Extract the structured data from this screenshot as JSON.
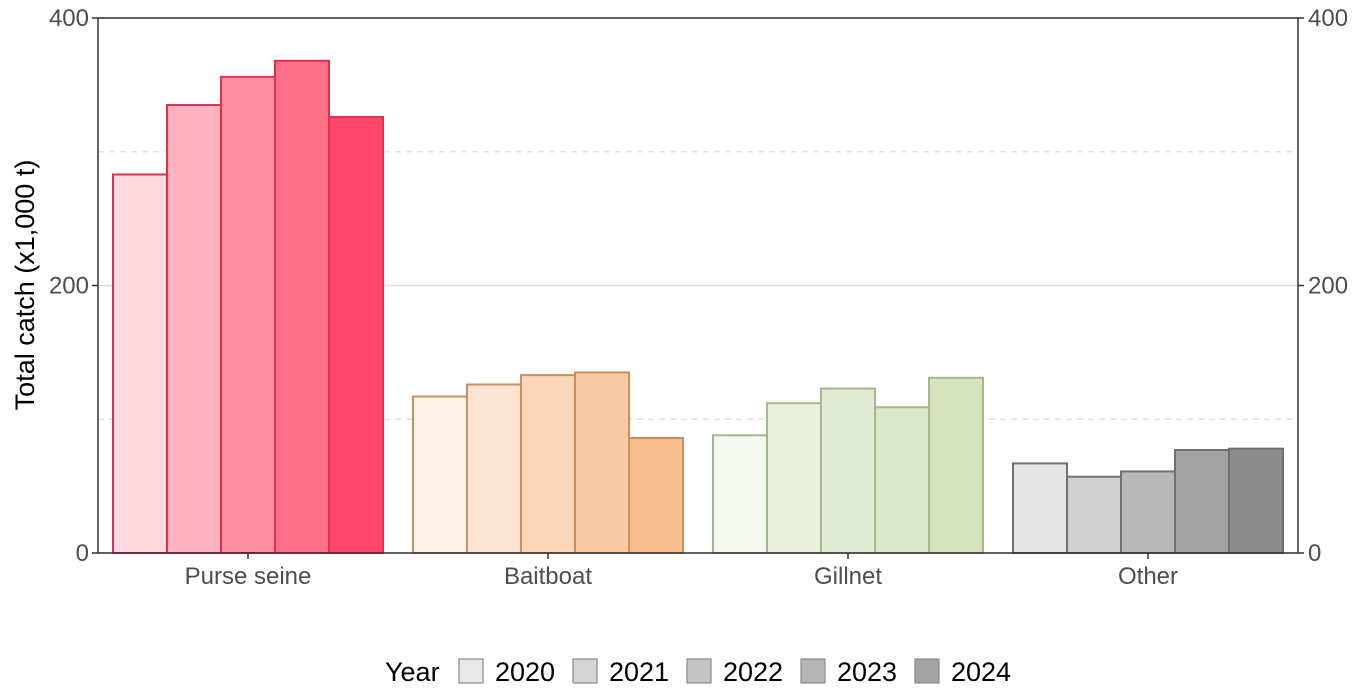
{
  "chart_data": {
    "type": "bar",
    "title": "",
    "xlabel": "",
    "ylabel": "Total catch (x1,000 t)",
    "ylim": [
      0,
      400
    ],
    "yticks": [
      0,
      200,
      400
    ],
    "secondary_axis": true,
    "grid": true,
    "legend_title": "Year",
    "legend_position": "bottom",
    "categories": [
      "Purse seine",
      "Baitboat",
      "Gillnet",
      "Other"
    ],
    "series": [
      {
        "name": "2020",
        "values": [
          283,
          117,
          88,
          67
        ],
        "legend_color": "#e8e8e8"
      },
      {
        "name": "2021",
        "values": [
          335,
          126,
          112,
          57
        ],
        "legend_color": "#d5d5d5"
      },
      {
        "name": "2022",
        "values": [
          356,
          133,
          123,
          61
        ],
        "legend_color": "#c4c4c4"
      },
      {
        "name": "2023",
        "values": [
          368,
          135,
          109,
          77
        ],
        "legend_color": "#b4b4b4"
      },
      {
        "name": "2024",
        "values": [
          326,
          86,
          131,
          78
        ],
        "legend_color": "#a3a3a3"
      }
    ],
    "category_colors": [
      {
        "fills": [
          "#ffd9e0",
          "#ffb3c1",
          "#ff8da1",
          "#ff6f88",
          "#ff4569"
        ],
        "stroke": "#e0304f"
      },
      {
        "fills": [
          "#fff2e8",
          "#fde4d2",
          "#fbd6bb",
          "#f9c9a5",
          "#f7bd8f"
        ],
        "stroke": "#c8905c"
      },
      {
        "fills": [
          "#f5f8ef",
          "#e8f0db",
          "#e2ecd4",
          "#dce6ca",
          "#d6e4bd"
        ],
        "stroke": "#a3b88c"
      },
      {
        "fills": [
          "#e6e6e6",
          "#d1d1d1",
          "#b8b8b8",
          "#a3a3a3",
          "#8c8c8c"
        ],
        "stroke": "#707070"
      }
    ]
  }
}
